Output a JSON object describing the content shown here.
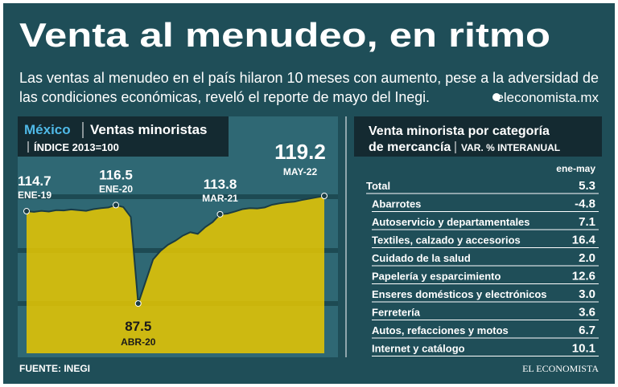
{
  "title": "Venta al menudeo, en ritmo",
  "subtitle": [
    "Las ventas al menudeo en el país hilaron 10 meses con aumento, pese a la adversidad de",
    "las condiciones económicas, reveló el reporte de mayo del Inegi."
  ],
  "site": "eleconomista.mx",
  "source": "FUENTE: INEGI",
  "logo": "EL ECONOMISTA",
  "chart_data": [
    {
      "type": "area",
      "title": "México",
      "subtitle": "Ventas minoristas",
      "note": "ÍNDICE 2013=100",
      "color": "#e9c800",
      "categories": [
        "ENE-19",
        null,
        null,
        null,
        null,
        null,
        null,
        null,
        null,
        null,
        null,
        null,
        "ENE-20",
        null,
        null,
        "ABR-20",
        null,
        null,
        null,
        null,
        null,
        null,
        null,
        null,
        null,
        null,
        "MAR-21",
        null,
        null,
        null,
        null,
        null,
        null,
        null,
        null,
        null,
        null,
        null,
        null,
        null,
        "MAY-22"
      ],
      "values": [
        114.7,
        114.5,
        114.8,
        114.6,
        115.0,
        114.9,
        115.2,
        115.0,
        114.8,
        115.3,
        115.6,
        115.8,
        116.5,
        115.9,
        113.0,
        87.5,
        94.0,
        100.5,
        103.0,
        104.8,
        106.0,
        107.5,
        108.5,
        108.0,
        110.0,
        111.5,
        113.8,
        114.0,
        114.6,
        115.3,
        115.6,
        115.5,
        115.8,
        116.6,
        117.0,
        117.3,
        117.5,
        118.0,
        118.4,
        118.8,
        119.2
      ]
    },
    {
      "type": "table",
      "title": "Venta minorista por categoría",
      "title2": "de mercancía",
      "note": "VAR. % INTERANUAL",
      "column": "ene-may",
      "categories": [
        "Total",
        "Abarrotes",
        "Autoservicio y departamentales",
        "Textiles, calzado y accesorios",
        "Cuidado de la salud",
        "Papelería y esparcimiento",
        "Enseres domésticos y electrónicos",
        "Ferretería",
        "Autos, refacciones y motos",
        "Internet y catálogo"
      ],
      "values": [
        5.3,
        -4.8,
        7.1,
        16.4,
        2.0,
        12.6,
        3.0,
        3.6,
        6.7,
        10.1
      ],
      "value_labels": [
        "5.3",
        "-4.8",
        "7.1",
        "16.4",
        "2.0",
        "12.6",
        "3.0",
        "3.6",
        "6.7",
        "10.1"
      ]
    }
  ]
}
